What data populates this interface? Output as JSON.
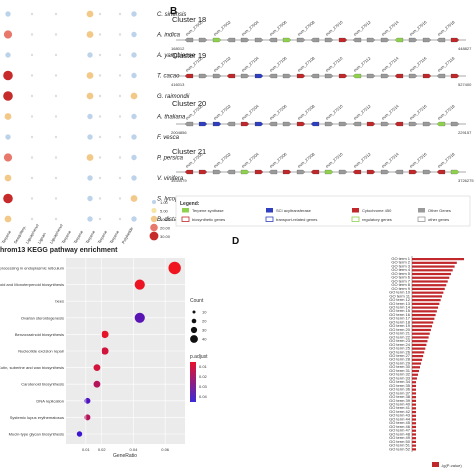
{
  "panel_a": {
    "species": [
      "C. sinensis",
      "A. indica",
      "A. yangbiense",
      "T. cacao",
      "G. raimondii",
      "A. thaliana",
      "F. vesca",
      "P. persica",
      "V. vinifera",
      "S. lycopersicum",
      "B. distachyon"
    ],
    "legend_values": [
      "1.00",
      "5.00",
      "10.00",
      "20.00",
      "30.00"
    ],
    "legend_colors": [
      "#bcd3ea",
      "#f5e6a8",
      "#f3c98a",
      "#e8776c",
      "#c62a2a"
    ]
  },
  "panel_b": {
    "label": "B",
    "clusters": [
      {
        "name": "Cluster 18",
        "start": "168012",
        "end": "448827"
      },
      {
        "name": "Cluster 19",
        "start": "416013",
        "end": "527400"
      },
      {
        "name": "Cluster 20",
        "start": "2004856",
        "end": "229157"
      },
      {
        "name": "Cluster 21",
        "start": "3534479",
        "end": "3726275"
      }
    ],
    "legend_title": "Legend:",
    "legend_items": [
      {
        "label": "Terpene synthase",
        "color": "#8fd14f"
      },
      {
        "label": "SCI acyltransferase",
        "color": "#2f3fbf"
      },
      {
        "label": "Cytochrome 450",
        "color": "#c0282b"
      },
      {
        "label": "Other Genes",
        "color": "#9a9a9a"
      },
      {
        "label": "biosynthetic genes",
        "color": "#c0282b"
      },
      {
        "label": "transport-related genes",
        "color": "#2f3fbf"
      },
      {
        "label": "regulatory genes",
        "color": "#8fd14f"
      },
      {
        "label": "other genes",
        "color": "#9a9a9a"
      }
    ]
  },
  "panel_c": {
    "title": "hrom13 KEGG pathway enrichment",
    "xlabel": "GeneRatio",
    "xticks": [
      "0.01",
      "0.02",
      "0.04",
      "0.06"
    ],
    "size_title": "Count",
    "size_values": [
      "10",
      "20",
      "30",
      "40"
    ],
    "color_title": "p.adjust",
    "color_values": [
      "0.01",
      "0.02",
      "0.03",
      "0.04"
    ]
  },
  "panel_d": {
    "label": "D",
    "legend_label": "-lg(P-value)"
  }
}
